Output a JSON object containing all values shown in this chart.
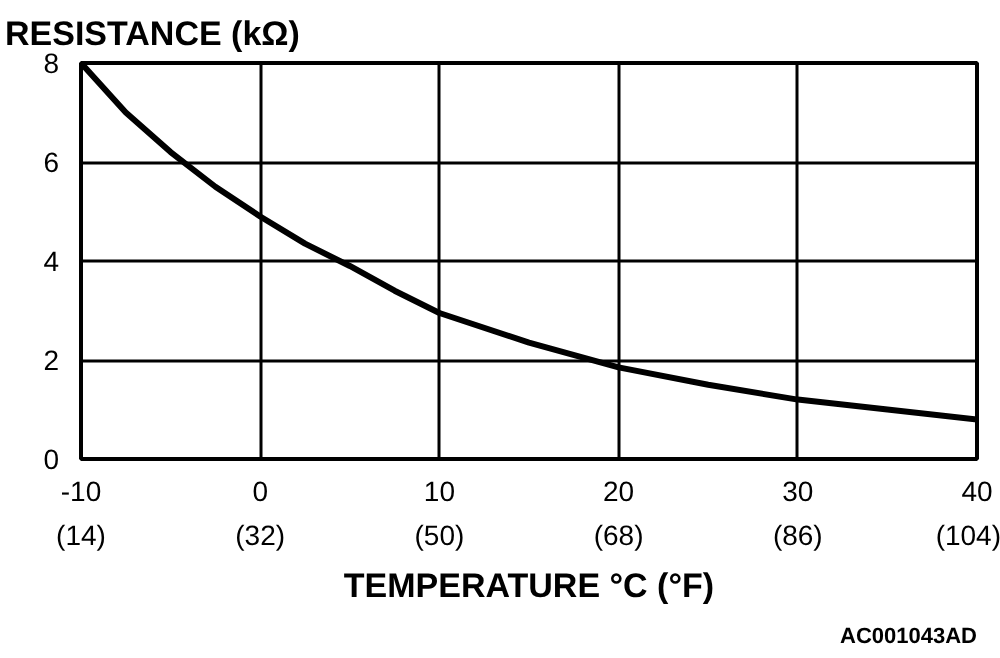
{
  "chart_data": {
    "type": "line",
    "ylabel": "RESISTANCE (kΩ)",
    "xlabel": "TEMPERATURE °C (°F)",
    "x": [
      -10,
      -7.5,
      -5,
      -2.5,
      0,
      2.5,
      5,
      7.5,
      10,
      15,
      20,
      25,
      30,
      35,
      40
    ],
    "series": [
      {
        "color": "#000000",
        "values": [
          8.0,
          7.0,
          6.2,
          5.5,
          4.9,
          4.35,
          3.9,
          3.4,
          2.95,
          2.35,
          1.85,
          1.5,
          1.2,
          1.0,
          0.8
        ]
      }
    ],
    "xlim": [
      -10,
      40
    ],
    "ylim": [
      0,
      8
    ],
    "xticks": [
      -10,
      0,
      10,
      20,
      30,
      40
    ],
    "x2lim": [
      14,
      104
    ],
    "x2ticks": [
      {
        "value": 14,
        "label": "(14)"
      },
      {
        "value": 32,
        "label": "(32)"
      },
      {
        "value": 50,
        "label": "(50)"
      },
      {
        "value": 68,
        "label": "(68)"
      },
      {
        "value": 86,
        "label": "(86)"
      },
      {
        "value": 104,
        "label": "(104)"
      }
    ],
    "yticks": [
      0,
      2,
      4,
      6,
      8
    ],
    "grid": true,
    "marker": "none",
    "line_style": "solid",
    "annotations": [
      "AC001043AD"
    ]
  }
}
